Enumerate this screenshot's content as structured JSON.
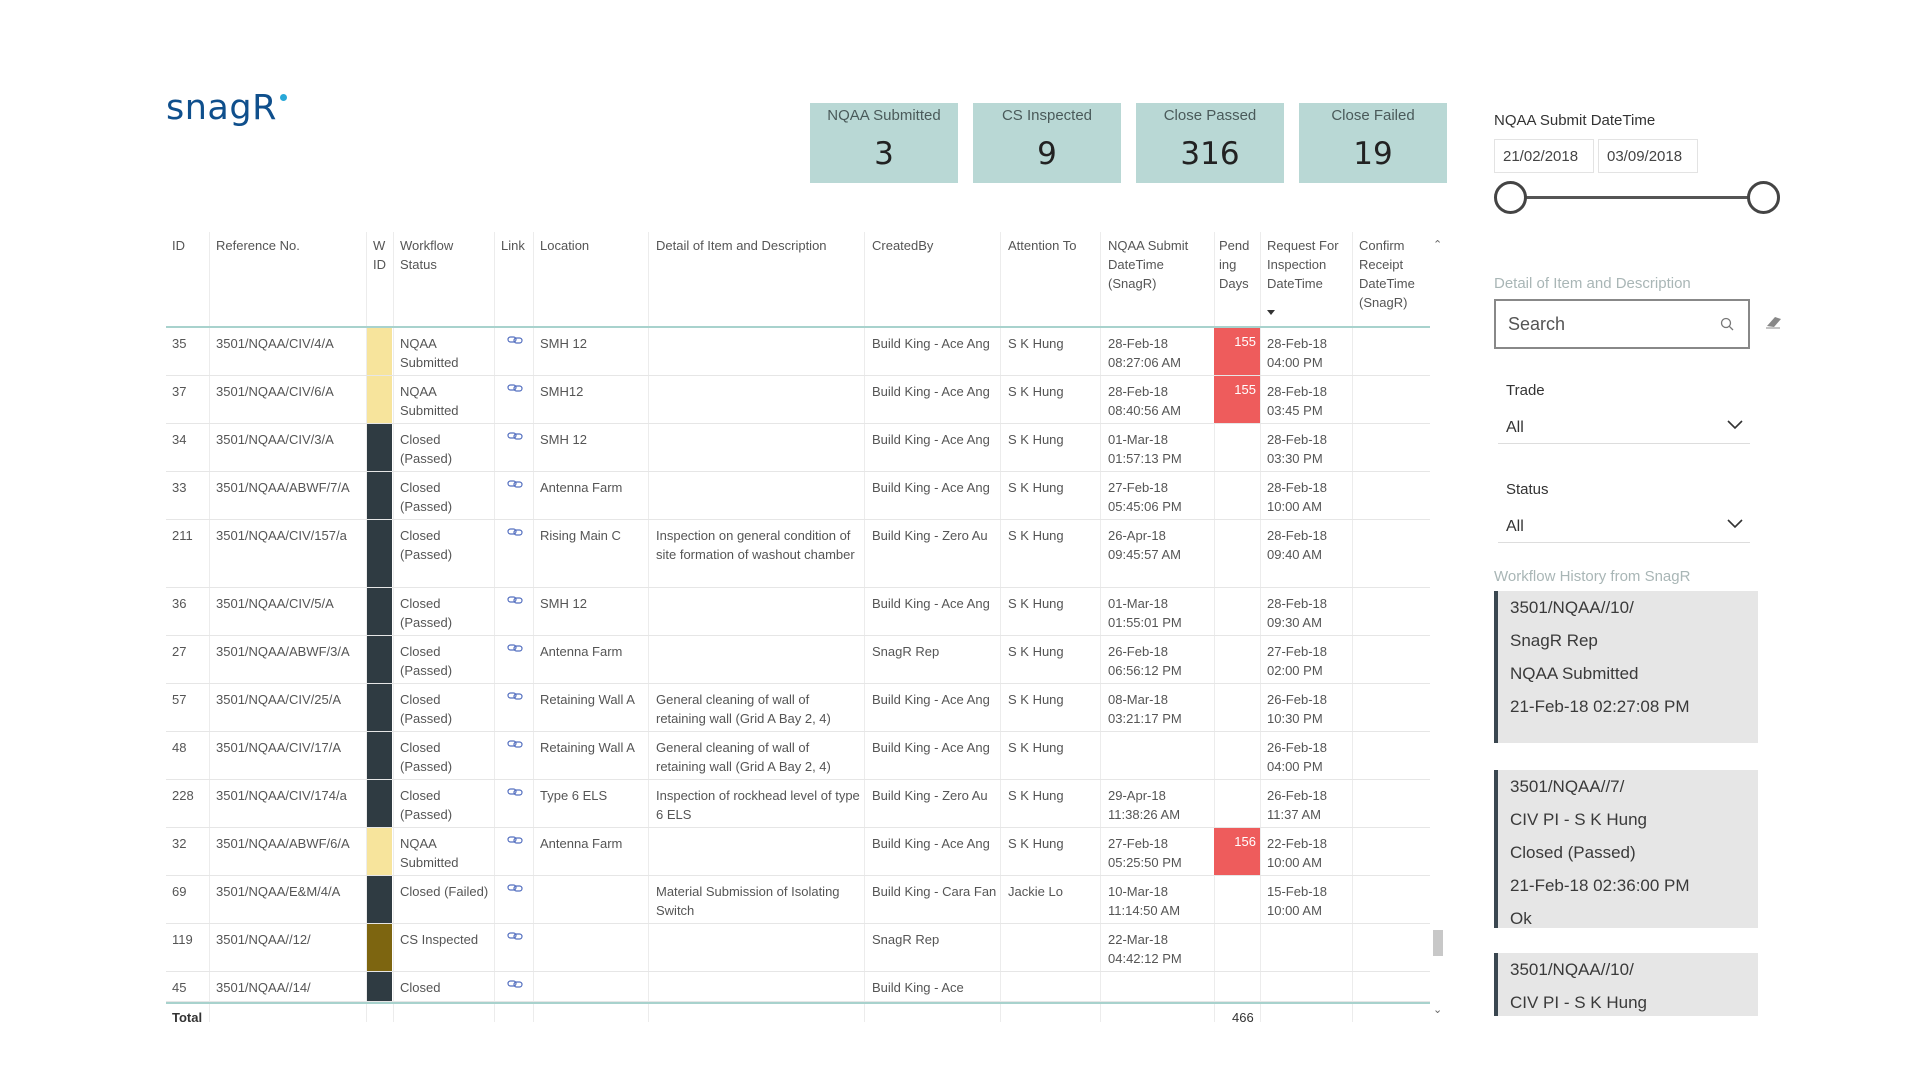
{
  "logo": {
    "text": "snag",
    "r": "R"
  },
  "kpis": [
    {
      "label": "NQAA Submitted",
      "value": "3"
    },
    {
      "label": "CS Inspected",
      "value": "9"
    },
    {
      "label": "Close Passed",
      "value": "316"
    },
    {
      "label": "Close Failed",
      "value": "19"
    }
  ],
  "table": {
    "headers": {
      "id": "ID",
      "ref": "Reference No.",
      "wid": "W ID",
      "status": "Workflow Status",
      "link": "Link",
      "location": "Location",
      "detail": "Detail of Item and Description",
      "created": "CreatedBy",
      "attention": "Attention To",
      "submit": "NQAA Submit DateTime (SnagR)",
      "pend": "Pend ing Days",
      "request": "Request For Inspection DateTime",
      "confirm": "Confirm Receipt DateTime (SnagR)"
    },
    "rows": [
      {
        "id": "35",
        "ref": "3501/NQAA/CIV/4/A",
        "status": "NQAA Submitted",
        "location": "SMH 12",
        "detail": "",
        "created": "Build King - Ace Ang",
        "attention": "S K Hung",
        "submit": "28-Feb-18 08:27:06 AM",
        "pend": "155",
        "request": "28-Feb-18 04:00 PM",
        "wid_color": "#f7e49c"
      },
      {
        "id": "37",
        "ref": "3501/NQAA/CIV/6/A",
        "status": "NQAA Submitted",
        "location": "SMH12",
        "detail": "",
        "created": "Build King - Ace Ang",
        "attention": "S K Hung",
        "submit": "28-Feb-18 08:40:56 AM",
        "pend": "155",
        "request": "28-Feb-18 03:45 PM",
        "wid_color": "#f7e49c"
      },
      {
        "id": "34",
        "ref": "3501/NQAA/CIV/3/A",
        "status": "Closed (Passed)",
        "location": "SMH 12",
        "detail": "",
        "created": "Build King - Ace Ang",
        "attention": "S K Hung",
        "submit": "01-Mar-18 01:57:13 PM",
        "pend": "",
        "request": "28-Feb-18 03:30 PM",
        "wid_color": "#2f3b42"
      },
      {
        "id": "33",
        "ref": "3501/NQAA/ABWF/7/A",
        "status": "Closed (Passed)",
        "location": "Antenna Farm",
        "detail": "",
        "created": "Build King - Ace Ang",
        "attention": "S K Hung",
        "submit": "27-Feb-18 05:45:06 PM",
        "pend": "",
        "request": "28-Feb-18 10:00 AM",
        "wid_color": "#2f3b42"
      },
      {
        "id": "211",
        "ref": "3501/NQAA/CIV/157/a",
        "status": "Closed (Passed)",
        "location": "Rising Main C",
        "detail": "Inspection on general condition of site formation of washout chamber",
        "created": "Build King - Zero Au",
        "attention": "S K Hung",
        "submit": "26-Apr-18 09:45:57 AM",
        "pend": "",
        "request": "28-Feb-18 09:40 AM",
        "wid_color": "#2f3b42"
      },
      {
        "id": "36",
        "ref": "3501/NQAA/CIV/5/A",
        "status": "Closed (Passed)",
        "location": "SMH 12",
        "detail": "",
        "created": "Build King - Ace Ang",
        "attention": "S K Hung",
        "submit": "01-Mar-18 01:55:01 PM",
        "pend": "",
        "request": "28-Feb-18 09:30 AM",
        "wid_color": "#2f3b42"
      },
      {
        "id": "27",
        "ref": "3501/NQAA/ABWF/3/A",
        "status": "Closed (Passed)",
        "location": "Antenna Farm",
        "detail": "",
        "created": "SnagR Rep",
        "attention": "S K Hung",
        "submit": "26-Feb-18 06:56:12 PM",
        "pend": "",
        "request": "27-Feb-18 02:00 PM",
        "wid_color": "#2f3b42"
      },
      {
        "id": "57",
        "ref": "3501/NQAA/CIV/25/A",
        "status": "Closed (Passed)",
        "location": "Retaining Wall A",
        "detail": "General cleaning of wall of retaining wall (Grid A Bay 2, 4)",
        "created": "Build King - Ace Ang",
        "attention": "S K Hung",
        "submit": "08-Mar-18 03:21:17 PM",
        "pend": "",
        "request": "26-Feb-18 10:30 PM",
        "wid_color": "#2f3b42"
      },
      {
        "id": "48",
        "ref": "3501/NQAA/CIV/17/A",
        "status": "Closed (Passed)",
        "location": "Retaining Wall A",
        "detail": "General cleaning of wall of retaining wall (Grid A Bay 2, 4)",
        "created": "Build King - Ace Ang",
        "attention": "S K Hung",
        "submit": "",
        "pend": "",
        "request": "26-Feb-18 04:00 PM",
        "wid_color": "#2f3b42"
      },
      {
        "id": "228",
        "ref": "3501/NQAA/CIV/174/a",
        "status": "Closed (Passed)",
        "location": "Type 6 ELS",
        "detail": "Inspection of rockhead level of type 6 ELS",
        "created": "Build King - Zero Au",
        "attention": "S K Hung",
        "submit": "29-Apr-18 11:38:26 AM",
        "pend": "",
        "request": "26-Feb-18 11:37 AM",
        "wid_color": "#2f3b42"
      },
      {
        "id": "32",
        "ref": "3501/NQAA/ABWF/6/A",
        "status": "NQAA Submitted",
        "location": "Antenna Farm",
        "detail": "",
        "created": "Build King - Ace Ang",
        "attention": "S K Hung",
        "submit": "27-Feb-18 05:25:50 PM",
        "pend": "156",
        "request": "22-Feb-18 10:00 AM",
        "wid_color": "#f7e49c"
      },
      {
        "id": "69",
        "ref": "3501/NQAA/E&M/4/A",
        "status": "Closed (Failed)",
        "location": "",
        "detail": "Material Submission of Isolating Switch",
        "created": "Build King - Cara Fan",
        "attention": "Jackie Lo",
        "submit": "10-Mar-18 11:14:50 AM",
        "pend": "",
        "request": "15-Feb-18 10:00 AM",
        "wid_color": "#2f3b42"
      },
      {
        "id": "119",
        "ref": "3501/NQAA//12/",
        "status": "CS Inspected",
        "location": "",
        "detail": "",
        "created": "SnagR Rep",
        "attention": "",
        "submit": "22-Mar-18 04:42:12 PM",
        "pend": "",
        "request": "",
        "wid_color": "#7d6510"
      },
      {
        "id": "45",
        "ref": "3501/NQAA//14/",
        "status": "Closed",
        "location": "",
        "detail": "",
        "created": "Build King - Ace",
        "attention": "",
        "submit": "",
        "pend": "",
        "request": "",
        "wid_color": "#2f3b42"
      }
    ],
    "total_label": "Total",
    "total_value": "466"
  },
  "filters": {
    "date_title": "NQAA Submit DateTime",
    "date_start": "21/02/2018",
    "date_end": "03/09/2018",
    "desc_label": "Detail of Item and Description",
    "search_placeholder": "Search",
    "trade_label": "Trade",
    "trade_value": "All",
    "status_label": "Status",
    "status_value": "All"
  },
  "history": {
    "title": "Workflow History from SnagR",
    "cards": [
      {
        "lines": [
          "3501/NQAA//10/",
          "SnagR Rep",
          "NQAA Submitted",
          "21-Feb-18 02:27:08 PM"
        ]
      },
      {
        "lines": [
          "3501/NQAA//7/",
          "CIV PI - S K Hung",
          "Closed (Passed)",
          "21-Feb-18 02:36:00 PM",
          "Ok"
        ]
      },
      {
        "lines": [
          "3501/NQAA//10/",
          "CIV PI - S K Hung"
        ]
      }
    ]
  },
  "colors": {
    "accent": "#b9d8d5",
    "pending_red": "#ee5c5c",
    "submitted_yellow": "#f7e49c",
    "closed_dark": "#2f3b42"
  }
}
